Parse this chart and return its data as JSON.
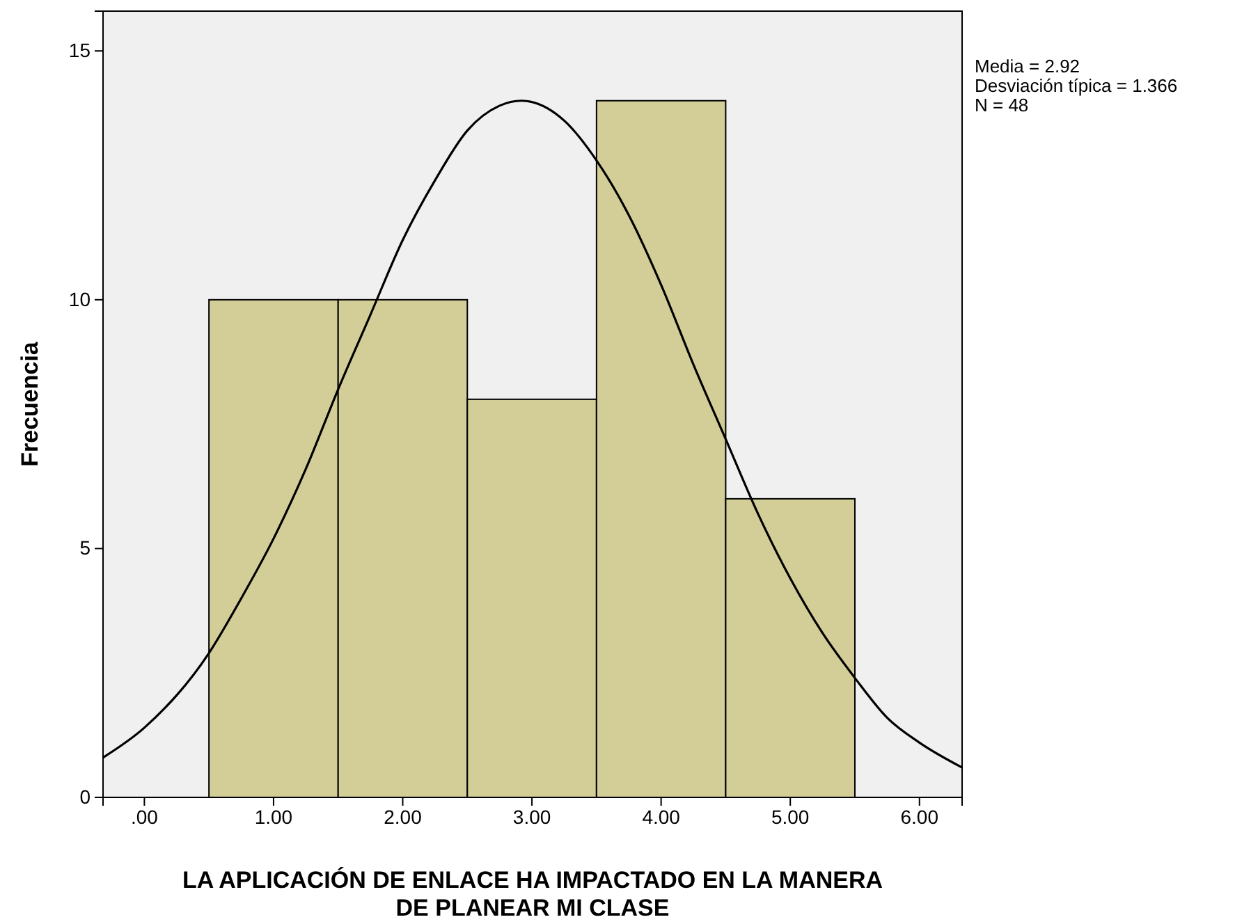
{
  "chart_data": {
    "type": "histogram",
    "xlabel": "LA APLICACIÓN DE ENLACE HA IMPACTADO EN LA MANERA DE PLANEAR MI CLASE",
    "ylabel": "Frecuencia",
    "series": [
      {
        "color": "#d3ce97",
        "bins": [
          0.5,
          1.5,
          2.5,
          3.5,
          4.5,
          5.5
        ],
        "values": [
          10,
          10,
          8,
          14,
          6
        ]
      },
      {
        "type": "line",
        "color": "#000000",
        "x": [
          -0.32,
          0,
          0.5,
          0.75,
          1,
          1.25,
          1.5,
          1.75,
          2,
          2.25,
          2.5,
          2.75,
          2.92,
          3.25,
          3.5,
          3.75,
          4,
          4.25,
          4.5,
          4.75,
          5,
          5.25,
          5.5,
          5.75,
          6,
          6.33
        ],
        "values": [
          0.8,
          1.4,
          2.9,
          4.0,
          5.2,
          6.6,
          8.2,
          9.7,
          11.2,
          12.4,
          13.4,
          13.9,
          14.0,
          13.6,
          12.8,
          11.7,
          10.3,
          8.7,
          7.2,
          5.7,
          4.4,
          3.3,
          2.4,
          1.6,
          1.1,
          0.6
        ]
      }
    ],
    "xlim": [
      -0.32,
      6.33
    ],
    "xticks": [
      {
        "value": 0,
        "label": ".00"
      },
      {
        "value": 1,
        "label": "1.00"
      },
      {
        "value": 2,
        "label": "2.00"
      },
      {
        "value": 3,
        "label": "3.00"
      },
      {
        "value": 4,
        "label": "4.00"
      },
      {
        "value": 5,
        "label": "5.00"
      },
      {
        "value": 6,
        "label": "6.00"
      }
    ],
    "ylim": [
      0,
      15.8
    ],
    "yticks": [
      0,
      5,
      10,
      15
    ],
    "annotations": [
      "Media = 2.92",
      "Desviación típica = 1.366",
      "N = 48"
    ]
  }
}
